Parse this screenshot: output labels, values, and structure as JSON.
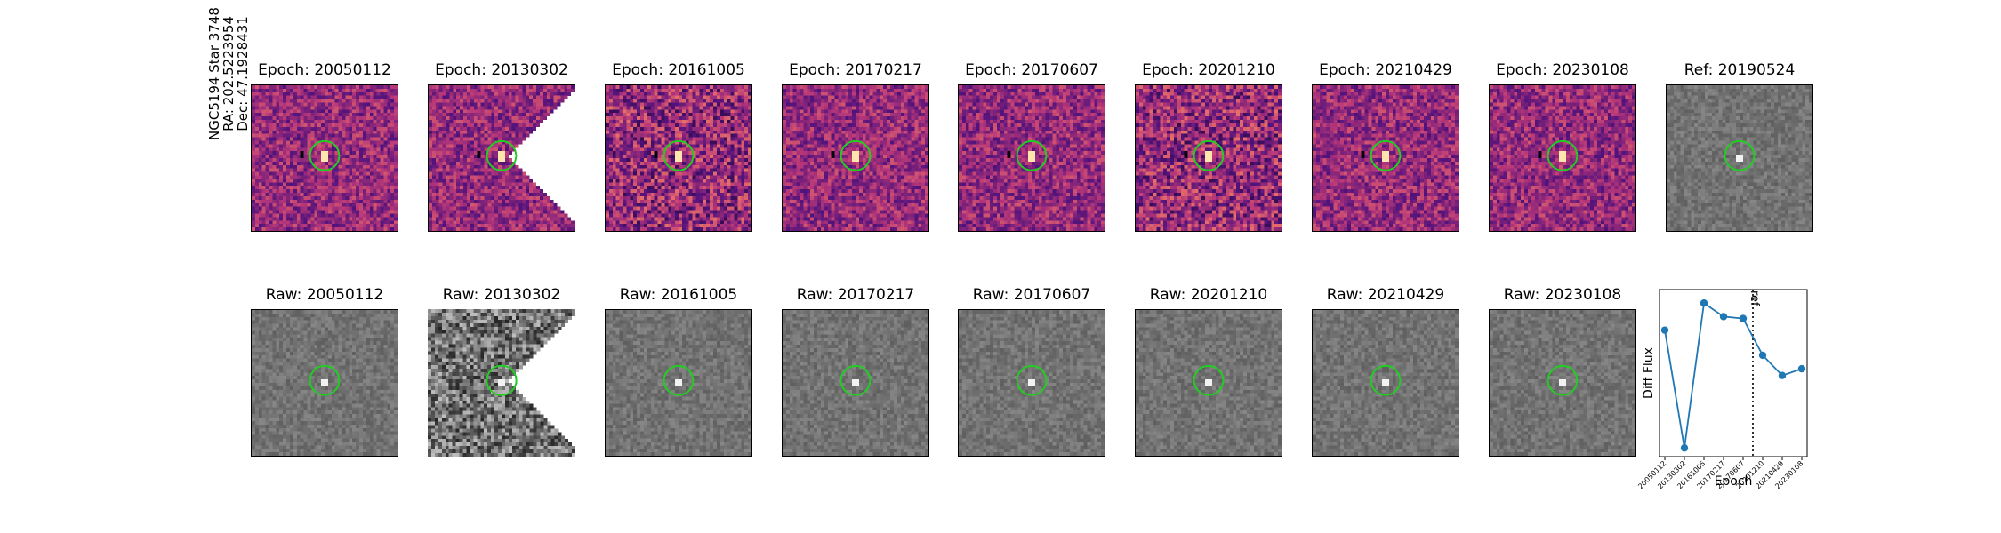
{
  "figure": {
    "star_label": [
      "NGC5194 Star 3748",
      "RA: 202.5223954",
      "Dec: 47.1928431"
    ]
  },
  "diff_row": [
    {
      "title": "Epoch: 20050112",
      "cutout": "full",
      "colormap": "magma"
    },
    {
      "title": "Epoch: 20130302",
      "cutout": "partial-diagonal",
      "colormap": "magma"
    },
    {
      "title": "Epoch: 20161005",
      "cutout": "full",
      "colormap": "magma"
    },
    {
      "title": "Epoch: 20170217",
      "cutout": "full",
      "colormap": "magma"
    },
    {
      "title": "Epoch: 20170607",
      "cutout": "full",
      "colormap": "magma"
    },
    {
      "title": "Epoch: 20201210",
      "cutout": "full",
      "colormap": "magma"
    },
    {
      "title": "Epoch: 20210429",
      "cutout": "full",
      "colormap": "magma"
    },
    {
      "title": "Epoch: 20230108",
      "cutout": "full",
      "colormap": "magma"
    },
    {
      "title": "Ref: 20190524",
      "cutout": "full",
      "colormap": "gray"
    }
  ],
  "raw_row": [
    {
      "title": "Raw: 20050112",
      "cutout": "full"
    },
    {
      "title": "Raw: 20130302",
      "cutout": "partial-diagonal"
    },
    {
      "title": "Raw: 20161005",
      "cutout": "full"
    },
    {
      "title": "Raw: 20170217",
      "cutout": "full"
    },
    {
      "title": "Raw: 20170607",
      "cutout": "full"
    },
    {
      "title": "Raw: 20201210",
      "cutout": "full"
    },
    {
      "title": "Raw: 20210429",
      "cutout": "full"
    },
    {
      "title": "Raw: 20230108",
      "cutout": "full"
    }
  ],
  "colors": {
    "aperture_circle": "#22cc22",
    "series_line": "#1f77b4",
    "ref_line": "#000000"
  },
  "chart_data": {
    "type": "line",
    "title": "",
    "xlabel": "Epoch",
    "ylabel": "Diff Flux",
    "x": [
      "20050112",
      "20130302",
      "20161005",
      "20170217",
      "20170607",
      "20201210",
      "20210429",
      "20230108"
    ],
    "values": [
      0.54,
      -0.68,
      0.82,
      0.68,
      0.66,
      0.28,
      0.07,
      0.14
    ],
    "ylim": [
      -0.77,
      0.96
    ],
    "ref_marker": {
      "label": "ref",
      "x_index": 4.5,
      "style": "dotted"
    },
    "grid": false,
    "ytick_labels": false,
    "marker": "circle"
  }
}
